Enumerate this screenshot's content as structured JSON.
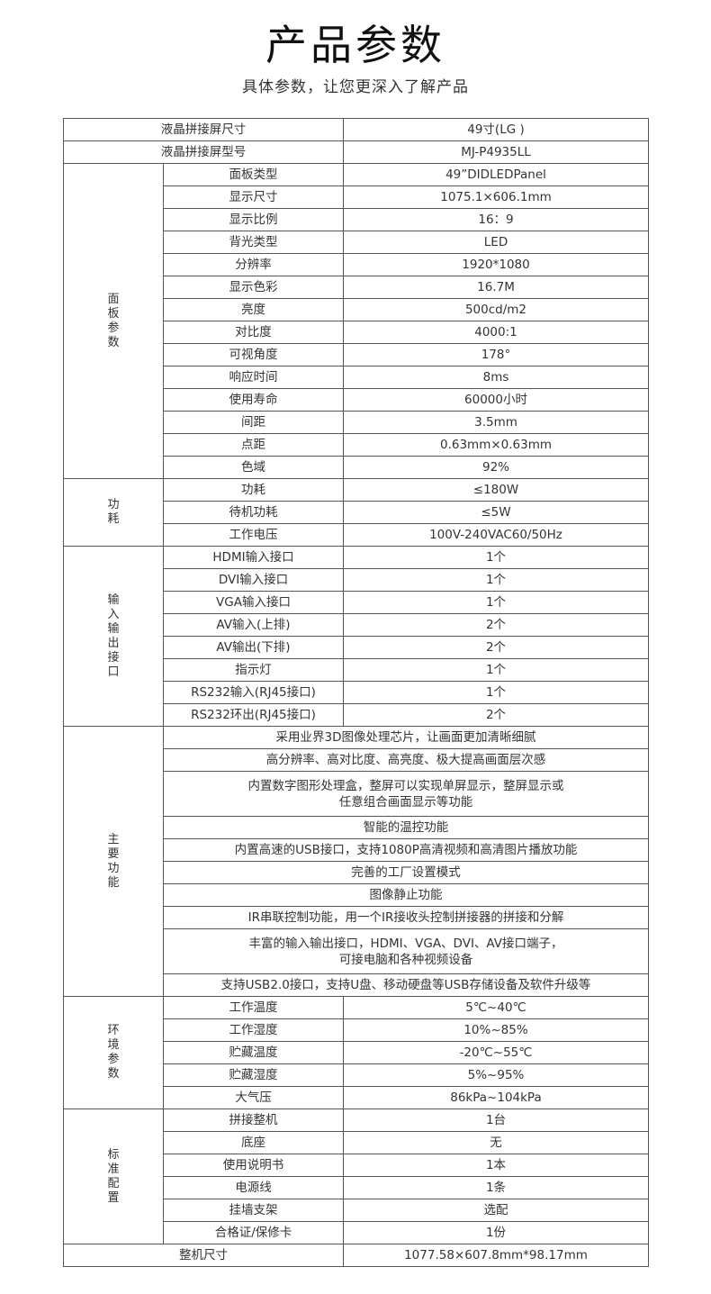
{
  "header": {
    "title": "产品参数",
    "subtitle": "具体参数，让您更深入了解产品"
  },
  "top_rows": [
    {
      "label": "液晶拼接屏尺寸",
      "value": "49寸(LG )"
    },
    {
      "label": "液晶拼接屏型号",
      "value": "MJ-P4935LL"
    }
  ],
  "groups": [
    {
      "name": "面板参数",
      "rows": [
        {
          "label": "面板类型",
          "value": "49”DIDLEDPanel"
        },
        {
          "label": "显示尺寸",
          "value": "1075.1×606.1mm"
        },
        {
          "label": "显示比例",
          "value": "16：9"
        },
        {
          "label": "背光类型",
          "value": "LED"
        },
        {
          "label": "分辨率",
          "value": "1920*1080"
        },
        {
          "label": "显示色彩",
          "value": "16.7M"
        },
        {
          "label": "亮度",
          "value": "500cd/m2"
        },
        {
          "label": "对比度",
          "value": "4000:1"
        },
        {
          "label": "可视角度",
          "value": "178°"
        },
        {
          "label": "响应时间",
          "value": "8ms"
        },
        {
          "label": "使用寿命",
          "value": "60000小时"
        },
        {
          "label": "间距",
          "value": "3.5mm"
        },
        {
          "label": "点距",
          "value": "0.63mm×0.63mm"
        },
        {
          "label": "色域",
          "value": "92%"
        }
      ]
    },
    {
      "name": "功耗",
      "rows": [
        {
          "label": "功耗",
          "value": "≤180W"
        },
        {
          "label": "待机功耗",
          "value": "≤5W"
        },
        {
          "label": "工作电压",
          "value": "100V-240VAC60/50Hz"
        }
      ]
    },
    {
      "name": "输入输出接口",
      "rows": [
        {
          "label": "HDMI输入接口",
          "value": "1个"
        },
        {
          "label": "DVI输入接口",
          "value": "1个"
        },
        {
          "label": "VGA输入接口",
          "value": "1个"
        },
        {
          "label": "AV输入(上排)",
          "value": "2个"
        },
        {
          "label": "AV输出(下排)",
          "value": "2个"
        },
        {
          "label": "指示灯",
          "value": "1个"
        },
        {
          "label": "RS232输入(RJ45接口)",
          "value": "1个"
        },
        {
          "label": "RS232环出(RJ45接口)",
          "value": "2个"
        }
      ]
    },
    {
      "name": "主要功能",
      "features": [
        [
          "采用业界3D图像处理芯片，让画面更加清晰细腻"
        ],
        [
          "高分辨率、高对比度、高亮度、极大提高画面层次感"
        ],
        [
          "内置数字图形处理盒，整屏可以实现单屏显示，整屏显示或",
          "任意组合画面显示等功能"
        ],
        [
          "智能的温控功能"
        ],
        [
          "内置高速的USB接口，支持1080P高清视频和高清图片播放功能"
        ],
        [
          "完善的工厂设置模式"
        ],
        [
          "图像静止功能"
        ],
        [
          "IR串联控制功能，用一个IR接收头控制拼接器的拼接和分解"
        ],
        [
          "丰富的输入输出接口，HDMI、VGA、DVI、AV接口端子，",
          "可接电脑和各种视频设备"
        ],
        [
          "支持USB2.0接口，支持U盘、移动硬盘等USB存储设备及软件升级等"
        ]
      ]
    },
    {
      "name": "环境参数",
      "rows": [
        {
          "label": "工作温度",
          "value": "5℃~40℃"
        },
        {
          "label": "工作湿度",
          "value": "10%~85%"
        },
        {
          "label": "贮藏温度",
          "value": "-20℃~55℃"
        },
        {
          "label": "贮藏湿度",
          "value": "5%~95%"
        },
        {
          "label": "大气压",
          "value": "86kPa~104kPa"
        }
      ]
    },
    {
      "name": "标准配置",
      "rows": [
        {
          "label": "拼接整机",
          "value": "1台"
        },
        {
          "label": "底座",
          "value": "无"
        },
        {
          "label": "使用说明书",
          "value": "1本"
        },
        {
          "label": "电源线",
          "value": "1条"
        },
        {
          "label": "挂墙支架",
          "value": "选配"
        },
        {
          "label": "合格证/保修卡",
          "value": "1份"
        }
      ]
    }
  ],
  "bottom_rows": [
    {
      "label": "整机尺寸",
      "value": "1077.58×607.8mm*98.17mm"
    }
  ]
}
